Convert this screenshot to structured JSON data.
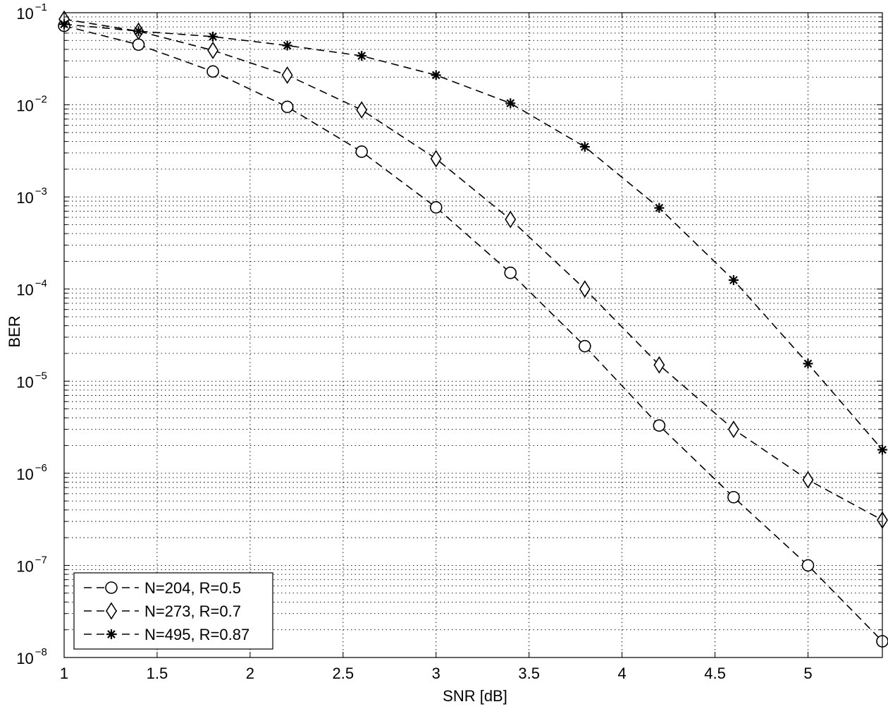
{
  "chart_data": {
    "type": "line",
    "title": "",
    "xlabel": "SNR [dB]",
    "ylabel": "BER",
    "xlim": [
      1,
      5.4
    ],
    "ylim_log10": [
      -8,
      -1
    ],
    "yscale": "log",
    "grid": true,
    "legend_position": "bottom-left",
    "x": [
      1,
      1.4,
      1.8,
      2.2,
      2.6,
      3.0,
      3.4,
      3.8,
      4.2,
      4.6,
      5.0,
      5.4
    ],
    "x_ticks": [
      1,
      1.5,
      2,
      2.5,
      3,
      3.5,
      4,
      4.5,
      5
    ],
    "x_tick_labels": [
      "1",
      "1.5",
      "2",
      "2.5",
      "3",
      "3.5",
      "4",
      "4.5",
      "5"
    ],
    "y_tick_exponents": [
      -8,
      -7,
      -6,
      -5,
      -4,
      -3,
      -2,
      -1
    ],
    "y_tick_base": "10",
    "series": [
      {
        "name": "N=204, R=0.5",
        "marker": "circle",
        "values": [
          0.072,
          0.045,
          0.023,
          0.0095,
          0.0031,
          0.00077,
          0.00015,
          2.4e-05,
          3.3e-06,
          5.5e-07,
          1e-07,
          1.5e-08
        ]
      },
      {
        "name": "N=273, R=0.7",
        "marker": "diamond",
        "values": [
          0.085,
          0.063,
          0.039,
          0.021,
          0.0088,
          0.0026,
          0.00057,
          0.0001,
          1.5e-05,
          3e-06,
          8.5e-07,
          3.1e-07
        ]
      },
      {
        "name": "N=495, R=0.87",
        "marker": "asterisk",
        "values": [
          0.075,
          0.063,
          0.055,
          0.044,
          0.034,
          0.021,
          0.0104,
          0.0035,
          0.00076,
          0.000125,
          1.55e-05,
          1.8e-06
        ]
      }
    ]
  }
}
